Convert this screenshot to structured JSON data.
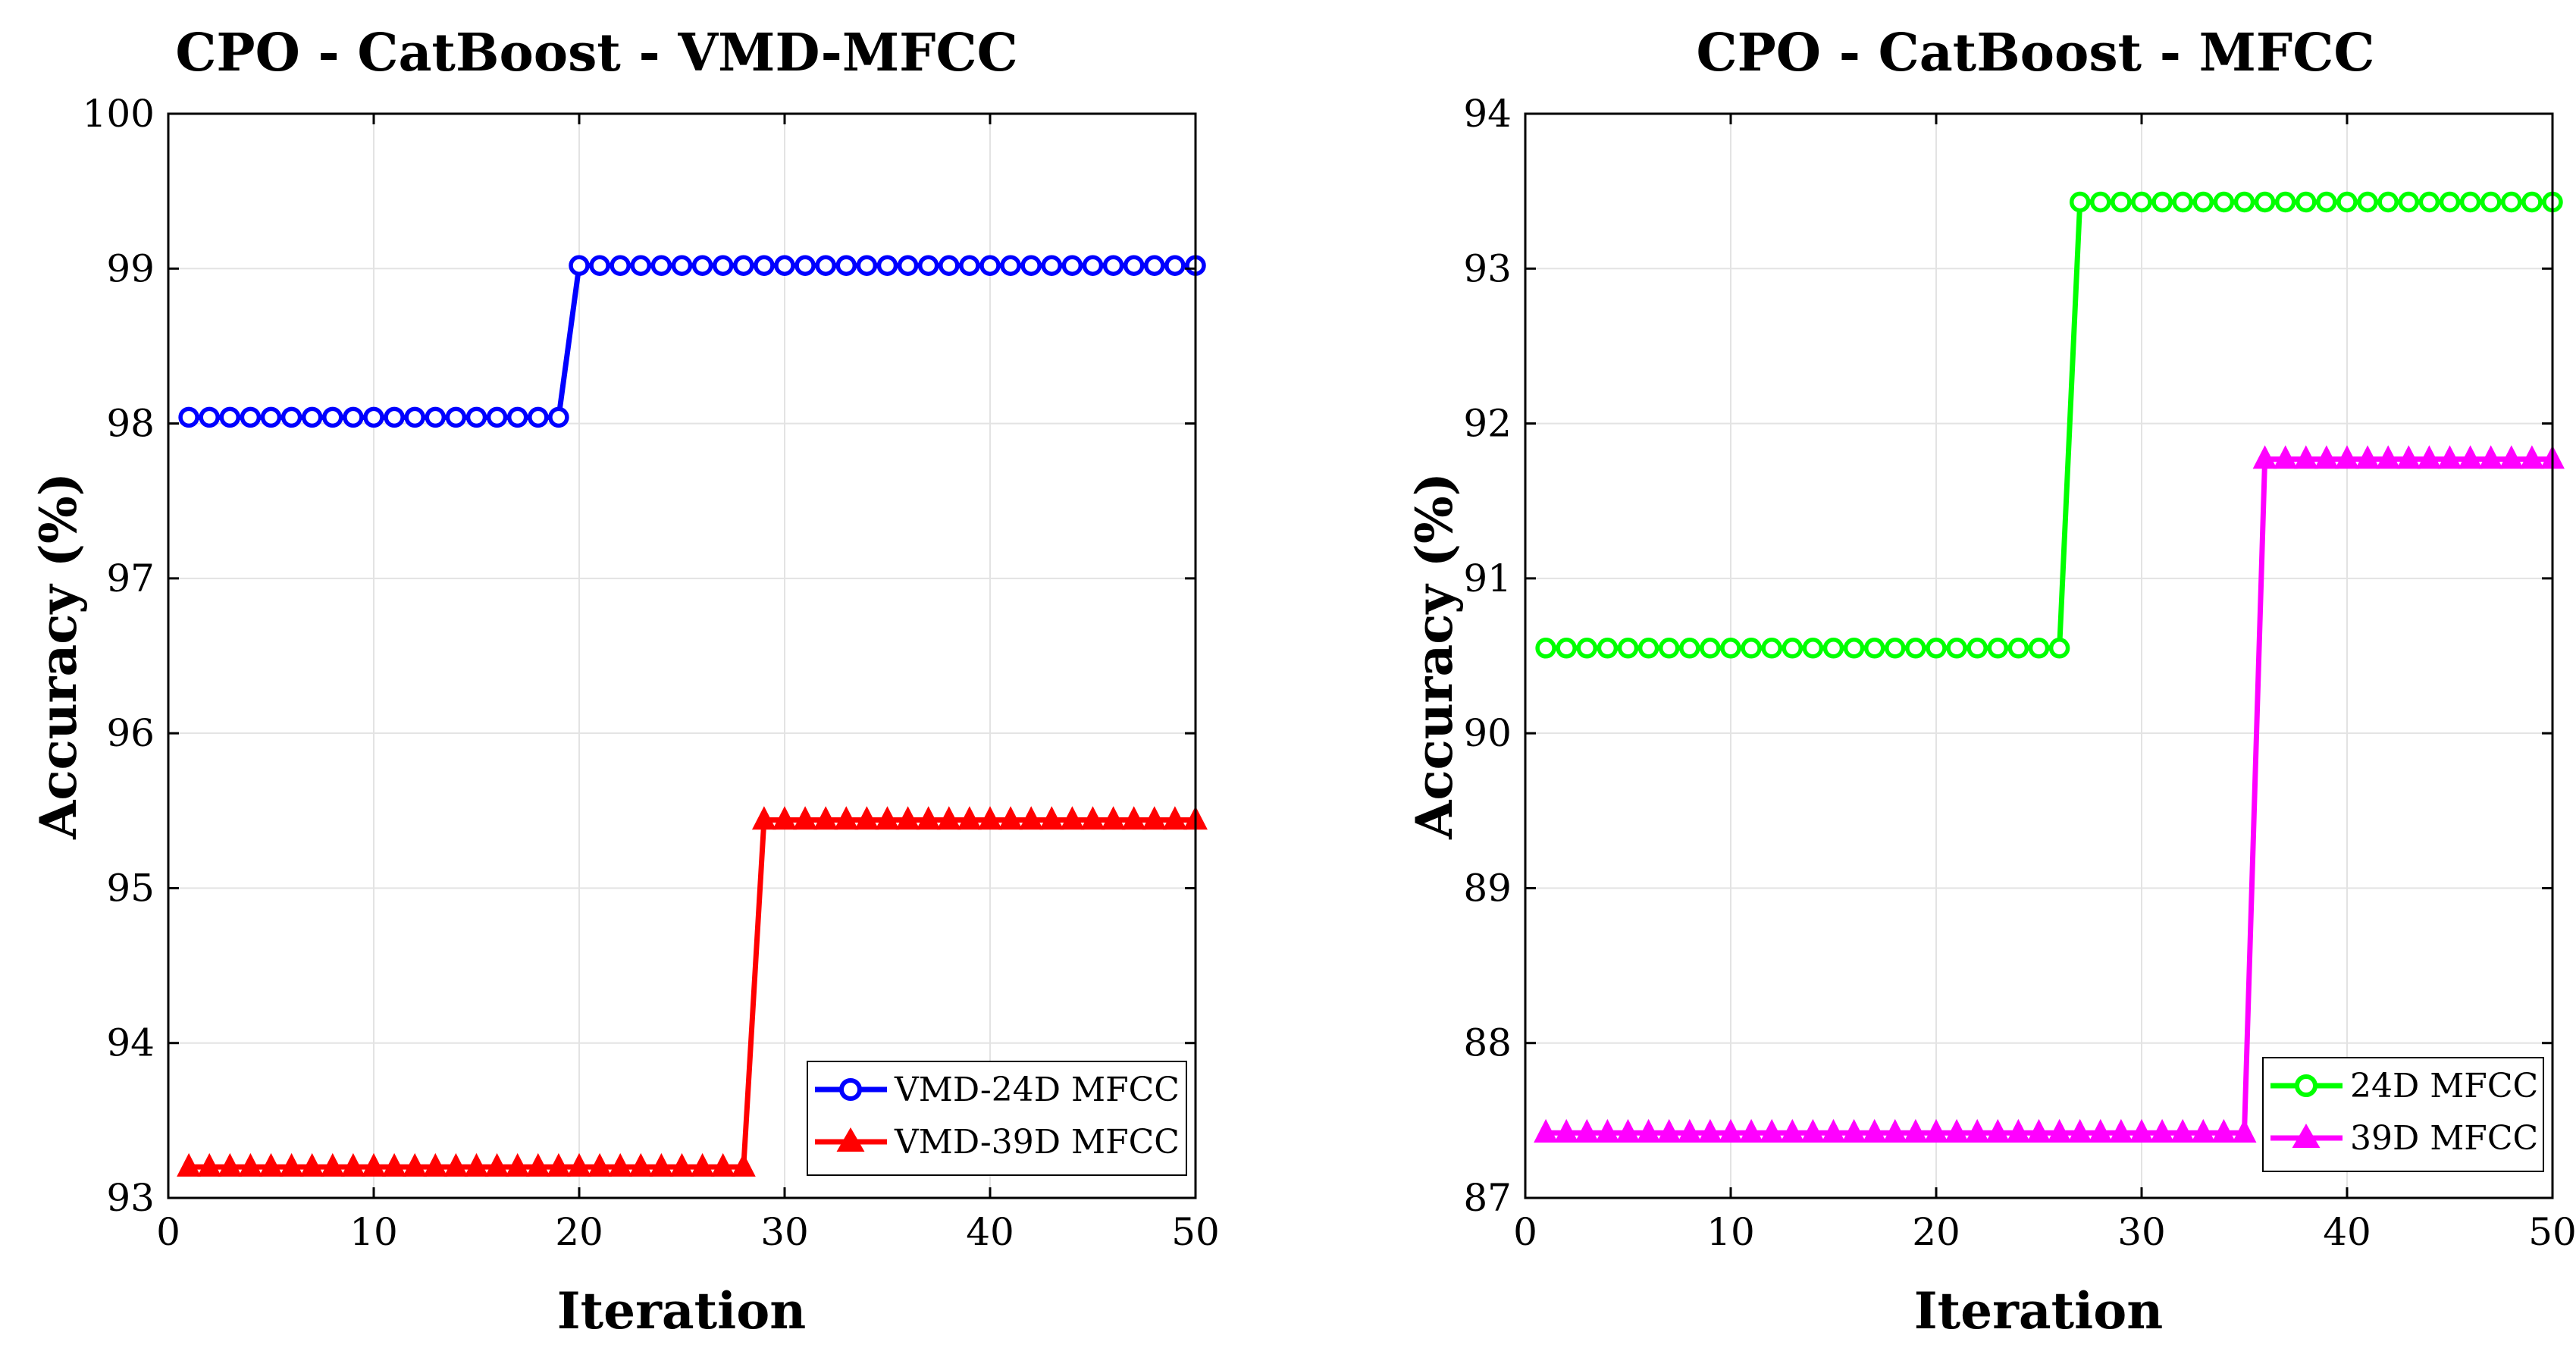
{
  "chart_data": [
    {
      "type": "line",
      "title": "CPO - CatBoost - VMD-MFCC",
      "xlabel": "Iteration",
      "ylabel": "Accuracy (%)",
      "xlim": [
        0,
        50
      ],
      "ylim": [
        93,
        100
      ],
      "xticks": [
        "0",
        "10",
        "20",
        "30",
        "40",
        "50"
      ],
      "yticks": [
        "93",
        "94",
        "95",
        "96",
        "97",
        "98",
        "99",
        "100"
      ],
      "grid": true,
      "legend_position": "bottom-right",
      "series": [
        {
          "name": "VMD-24D MFCC",
          "color": "#0000ff",
          "marker": "circle",
          "x": [
            1,
            2,
            3,
            4,
            5,
            6,
            7,
            8,
            9,
            10,
            11,
            12,
            13,
            14,
            15,
            16,
            17,
            18,
            19,
            20,
            21,
            22,
            23,
            24,
            25,
            26,
            27,
            28,
            29,
            30,
            31,
            32,
            33,
            34,
            35,
            36,
            37,
            38,
            39,
            40,
            41,
            42,
            43,
            44,
            45,
            46,
            47,
            48,
            49,
            50
          ],
          "y": [
            98.04,
            98.04,
            98.04,
            98.04,
            98.04,
            98.04,
            98.04,
            98.04,
            98.04,
            98.04,
            98.04,
            98.04,
            98.04,
            98.04,
            98.04,
            98.04,
            98.04,
            98.04,
            98.04,
            99.02,
            99.02,
            99.02,
            99.02,
            99.02,
            99.02,
            99.02,
            99.02,
            99.02,
            99.02,
            99.02,
            99.02,
            99.02,
            99.02,
            99.02,
            99.02,
            99.02,
            99.02,
            99.02,
            99.02,
            99.02,
            99.02,
            99.02,
            99.02,
            99.02,
            99.02,
            99.02,
            99.02,
            99.02,
            99.02,
            99.02
          ]
        },
        {
          "name": "VMD-39D MFCC",
          "color": "#ff0000",
          "marker": "triangle",
          "x": [
            1,
            2,
            3,
            4,
            5,
            6,
            7,
            8,
            9,
            10,
            11,
            12,
            13,
            14,
            15,
            16,
            17,
            18,
            19,
            20,
            21,
            22,
            23,
            24,
            25,
            26,
            27,
            28,
            29,
            30,
            31,
            32,
            33,
            34,
            35,
            36,
            37,
            38,
            39,
            40,
            41,
            42,
            43,
            44,
            45,
            46,
            47,
            48,
            49,
            50
          ],
          "y": [
            93.2,
            93.2,
            93.2,
            93.2,
            93.2,
            93.2,
            93.2,
            93.2,
            93.2,
            93.2,
            93.2,
            93.2,
            93.2,
            93.2,
            93.2,
            93.2,
            93.2,
            93.2,
            93.2,
            93.2,
            93.2,
            93.2,
            93.2,
            93.2,
            93.2,
            93.2,
            93.2,
            93.2,
            95.44,
            95.44,
            95.44,
            95.44,
            95.44,
            95.44,
            95.44,
            95.44,
            95.44,
            95.44,
            95.44,
            95.44,
            95.44,
            95.44,
            95.44,
            95.44,
            95.44,
            95.44,
            95.44,
            95.44,
            95.44,
            95.44
          ]
        }
      ]
    },
    {
      "type": "line",
      "title": "CPO - CatBoost - MFCC",
      "xlabel": "Iteration",
      "ylabel": "Accuracy (%)",
      "xlim": [
        0,
        50
      ],
      "ylim": [
        87,
        94
      ],
      "xticks": [
        "0",
        "10",
        "20",
        "30",
        "40",
        "50"
      ],
      "yticks": [
        "87",
        "88",
        "89",
        "90",
        "91",
        "92",
        "93",
        "94"
      ],
      "grid": true,
      "legend_position": "bottom-right",
      "series": [
        {
          "name": "24D MFCC",
          "color": "#00ff00",
          "marker": "circle",
          "x": [
            1,
            2,
            3,
            4,
            5,
            6,
            7,
            8,
            9,
            10,
            11,
            12,
            13,
            14,
            15,
            16,
            17,
            18,
            19,
            20,
            21,
            22,
            23,
            24,
            25,
            26,
            27,
            28,
            29,
            30,
            31,
            32,
            33,
            34,
            35,
            36,
            37,
            38,
            39,
            40,
            41,
            42,
            43,
            44,
            45,
            46,
            47,
            48,
            49,
            50
          ],
          "y": [
            90.55,
            90.55,
            90.55,
            90.55,
            90.55,
            90.55,
            90.55,
            90.55,
            90.55,
            90.55,
            90.55,
            90.55,
            90.55,
            90.55,
            90.55,
            90.55,
            90.55,
            90.55,
            90.55,
            90.55,
            90.55,
            90.55,
            90.55,
            90.55,
            90.55,
            90.55,
            93.43,
            93.43,
            93.43,
            93.43,
            93.43,
            93.43,
            93.43,
            93.43,
            93.43,
            93.43,
            93.43,
            93.43,
            93.43,
            93.43,
            93.43,
            93.43,
            93.43,
            93.43,
            93.43,
            93.43,
            93.43,
            93.43,
            93.43,
            93.43
          ]
        },
        {
          "name": "39D MFCC",
          "color": "#ff00ff",
          "marker": "triangle",
          "x": [
            1,
            2,
            3,
            4,
            5,
            6,
            7,
            8,
            9,
            10,
            11,
            12,
            13,
            14,
            15,
            16,
            17,
            18,
            19,
            20,
            21,
            22,
            23,
            24,
            25,
            26,
            27,
            28,
            29,
            30,
            31,
            32,
            33,
            34,
            35,
            36,
            37,
            38,
            39,
            40,
            41,
            42,
            43,
            44,
            45,
            46,
            47,
            48,
            49,
            50
          ],
          "y": [
            87.42,
            87.42,
            87.42,
            87.42,
            87.42,
            87.42,
            87.42,
            87.42,
            87.42,
            87.42,
            87.42,
            87.42,
            87.42,
            87.42,
            87.42,
            87.42,
            87.42,
            87.42,
            87.42,
            87.42,
            87.42,
            87.42,
            87.42,
            87.42,
            87.42,
            87.42,
            87.42,
            87.42,
            87.42,
            87.42,
            87.42,
            87.42,
            87.42,
            87.42,
            87.42,
            91.77,
            91.77,
            91.77,
            91.77,
            91.77,
            91.77,
            91.77,
            91.77,
            91.77,
            91.77,
            91.77,
            91.77,
            91.77,
            91.77,
            91.77
          ]
        }
      ]
    }
  ]
}
